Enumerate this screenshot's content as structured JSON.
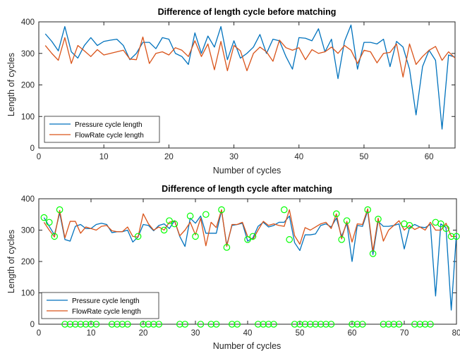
{
  "chart_data": [
    {
      "type": "line",
      "title": "Difference of length cycle before matching",
      "xlabel": "Number of cycles",
      "ylabel": "Length of cycles",
      "xlim": [
        0,
        64
      ],
      "ylim": [
        0,
        400
      ],
      "xticks": [
        0,
        10,
        20,
        30,
        40,
        50,
        60
      ],
      "yticks": [
        0,
        100,
        200,
        300,
        400
      ],
      "grid": false,
      "legend_position": "bottom-left",
      "x": [
        1,
        2,
        3,
        4,
        5,
        6,
        7,
        8,
        9,
        10,
        11,
        12,
        13,
        14,
        15,
        16,
        17,
        18,
        19,
        20,
        21,
        22,
        23,
        24,
        25,
        26,
        27,
        28,
        29,
        30,
        31,
        32,
        33,
        34,
        35,
        36,
        37,
        38,
        39,
        40,
        41,
        42,
        43,
        44,
        45,
        46,
        47,
        48,
        49,
        50,
        51,
        52,
        53,
        54,
        55,
        56,
        57,
        58,
        59,
        60,
        61,
        62,
        63,
        64
      ],
      "series": [
        {
          "name": "Pressure cycle length",
          "color": "#0072BD",
          "values": [
            362,
            338,
            308,
            385,
            305,
            285,
            325,
            350,
            325,
            338,
            342,
            345,
            325,
            280,
            300,
            335,
            335,
            315,
            350,
            345,
            300,
            290,
            265,
            365,
            300,
            355,
            320,
            385,
            280,
            340,
            285,
            300,
            320,
            360,
            300,
            345,
            340,
            290,
            250,
            350,
            348,
            340,
            378,
            305,
            345,
            220,
            338,
            390,
            250,
            335,
            335,
            330,
            345,
            258,
            338,
            320,
            250,
            105,
            258,
            310,
            278,
            60,
            295,
            288
          ]
        },
        {
          "name": "FlowRate cycle length",
          "color": "#D95319",
          "values": [
            325,
            300,
            278,
            350,
            268,
            325,
            308,
            290,
            312,
            295,
            300,
            305,
            310,
            282,
            280,
            352,
            268,
            300,
            305,
            295,
            318,
            310,
            290,
            340,
            290,
            330,
            248,
            338,
            245,
            325,
            308,
            245,
            300,
            320,
            305,
            275,
            342,
            318,
            310,
            318,
            280,
            312,
            300,
            305,
            320,
            300,
            325,
            310,
            268,
            310,
            305,
            270,
            300,
            303,
            330,
            225,
            330,
            265,
            290,
            310,
            322,
            278,
            305,
            285
          ]
        }
      ]
    },
    {
      "type": "line",
      "title": "Difference of length cycle after matching",
      "xlabel": "Number of cycles",
      "ylabel": "Length of cycles",
      "xlim": [
        0,
        80
      ],
      "ylim": [
        0,
        400
      ],
      "xticks": [
        0,
        10,
        20,
        30,
        40,
        50,
        60,
        70,
        80
      ],
      "yticks": [
        0,
        100,
        200,
        300,
        400
      ],
      "grid": false,
      "legend_position": "bottom-left",
      "x": [
        1,
        2,
        3,
        4,
        5,
        6,
        7,
        8,
        9,
        10,
        11,
        12,
        13,
        14,
        15,
        16,
        17,
        18,
        19,
        20,
        21,
        22,
        23,
        24,
        25,
        26,
        27,
        28,
        29,
        30,
        31,
        32,
        33,
        34,
        35,
        36,
        37,
        38,
        39,
        40,
        41,
        42,
        43,
        44,
        45,
        46,
        47,
        48,
        49,
        50,
        51,
        52,
        53,
        54,
        55,
        56,
        57,
        58,
        59,
        60,
        61,
        62,
        63,
        64,
        65,
        66,
        67,
        68,
        69,
        70,
        71,
        72,
        73,
        74,
        75,
        76,
        77,
        78,
        79,
        80
      ],
      "series": [
        {
          "name": "Pressure cycle length",
          "color": "#0072BD",
          "values": [
            340,
            312,
            285,
            355,
            270,
            265,
            312,
            318,
            305,
            305,
            318,
            322,
            318,
            292,
            295,
            295,
            300,
            262,
            278,
            318,
            315,
            298,
            315,
            320,
            305,
            330,
            280,
            248,
            338,
            322,
            345,
            290,
            290,
            290,
            362,
            252,
            315,
            318,
            322,
            265,
            275,
            312,
            325,
            310,
            315,
            325,
            325,
            345,
            260,
            235,
            285,
            285,
            288,
            315,
            320,
            310,
            338,
            280,
            322,
            200,
            315,
            312,
            362,
            222,
            328,
            312,
            312,
            315,
            320,
            240,
            308,
            318,
            310,
            308,
            318,
            90,
            320,
            308,
            45,
            290
          ]
        },
        {
          "name": "FlowRate cycle length",
          "color": "#D95319",
          "values": [
            325,
            300,
            278,
            363,
            275,
            328,
            328,
            290,
            310,
            305,
            300,
            312,
            315,
            298,
            295,
            295,
            310,
            280,
            278,
            352,
            320,
            300,
            310,
            300,
            325,
            330,
            282,
            300,
            325,
            285,
            338,
            250,
            325,
            308,
            365,
            248,
            318,
            318,
            325,
            280,
            270,
            300,
            328,
            315,
            320,
            315,
            312,
            365,
            282,
            255,
            308,
            300,
            310,
            320,
            325,
            305,
            352,
            272,
            328,
            262,
            320,
            318,
            368,
            232,
            338,
            265,
            300,
            315,
            330,
            300,
            315,
            302,
            310,
            300,
            325,
            300,
            300,
            322,
            280,
            280
          ]
        }
      ],
      "matched_markers": {
        "color": "#00FF00",
        "x": [
          1,
          2,
          3,
          4,
          19,
          24,
          25,
          26,
          29,
          30,
          32,
          35,
          36,
          40,
          41,
          47,
          48,
          57,
          58,
          59,
          63,
          64,
          65,
          70,
          71,
          76,
          77,
          78,
          79,
          80
        ],
        "y": [
          340,
          325,
          280,
          365,
          280,
          300,
          330,
          320,
          345,
          280,
          350,
          365,
          245,
          270,
          280,
          365,
          270,
          352,
          270,
          330,
          365,
          225,
          335,
          320,
          315,
          325,
          320,
          305,
          280,
          280
        ]
      },
      "zero_markers": {
        "color": "#00FF00",
        "x": [
          5,
          6,
          7,
          8,
          9,
          10,
          11,
          14,
          15,
          16,
          17,
          20,
          21,
          22,
          23,
          27,
          28,
          31,
          33,
          34,
          37,
          38,
          42,
          43,
          44,
          45,
          49,
          50,
          51,
          52,
          53,
          54,
          55,
          56,
          60,
          61,
          62,
          66,
          67,
          68,
          69,
          72,
          73,
          74,
          75
        ]
      }
    }
  ]
}
